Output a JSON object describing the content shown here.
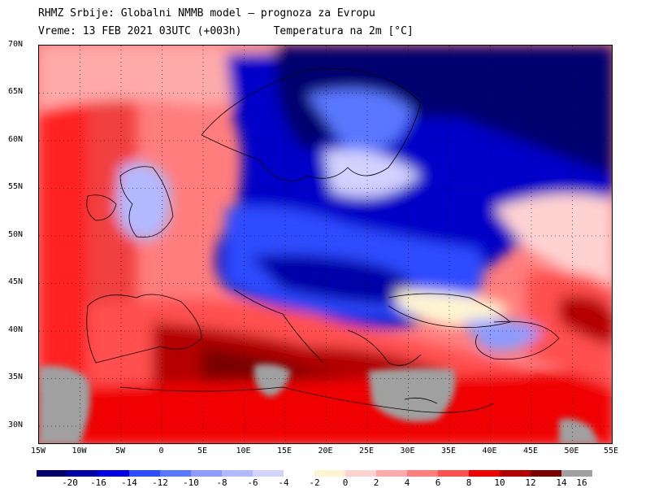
{
  "header": {
    "line1": "RHMZ Srbije: Globalni NMMB model — prognoza za Evropu",
    "line2_left": "Vreme: 13 FEB 2021 03UTC (+003h)",
    "line2_right": "Temperatura na 2m [°C]"
  },
  "map": {
    "lon_range": [
      -15,
      55
    ],
    "lat_range": [
      28,
      70
    ],
    "lat_labels": [
      "70N",
      "65N",
      "60N",
      "55N",
      "50N",
      "45N",
      "40N",
      "35N",
      "30N"
    ],
    "lon_labels": [
      "15W",
      "10W",
      "5W",
      "0",
      "5E",
      "10E",
      "15E",
      "20E",
      "25E",
      "30E",
      "35E",
      "40E",
      "45E",
      "50E",
      "55E"
    ]
  },
  "legend": {
    "ticks": [
      "-20",
      "-16",
      "-14",
      "-12",
      "-10",
      "-8",
      "-6",
      "-4",
      "-2",
      "0",
      "2",
      "4",
      "6",
      "8",
      "10",
      "12",
      "14",
      "16"
    ],
    "colors": [
      "#00006e",
      "#0000a8",
      "#0000e6",
      "#2d4bff",
      "#5a78ff",
      "#8c9bff",
      "#b4b9ff",
      "#d2d2ff",
      "#ffffff",
      "#fff5d2",
      "#ffd2d2",
      "#ffaaaa",
      "#ff7d7d",
      "#ff5050",
      "#f00000",
      "#b40000",
      "#7a0000",
      "#a0a0a0"
    ]
  }
}
